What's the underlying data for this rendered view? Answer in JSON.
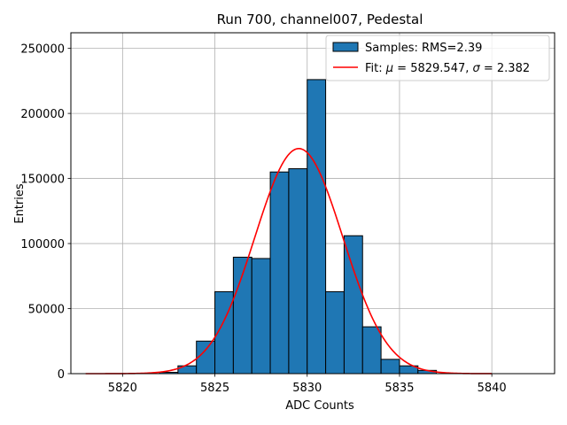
{
  "chart_data": {
    "type": "bar",
    "title": "Run 700, channel007, Pedestal",
    "xlabel": "ADC Counts",
    "ylabel": "Entries",
    "xlim": [
      5817.2,
      5843.4
    ],
    "ylim": [
      0,
      262000
    ],
    "xticks": [
      5820,
      5825,
      5830,
      5835,
      5840
    ],
    "xtick_labels": [
      "5820",
      "5825",
      "5830",
      "5835",
      "5840"
    ],
    "yticks": [
      0,
      50000,
      100000,
      150000,
      200000,
      250000
    ],
    "ytick_labels": [
      "0",
      "50000",
      "100000",
      "150000",
      "200000",
      "250000"
    ],
    "grid": true,
    "legend_position": "top-right",
    "histogram": {
      "name": "Samples: RMS=2.39",
      "color": "#1f77b4",
      "edge_color": "#000000",
      "bin_width": 1.0,
      "bin_lefts": [
        5822,
        5823,
        5824,
        5825,
        5826,
        5827,
        5828,
        5829,
        5830,
        5831,
        5832,
        5833,
        5834,
        5835,
        5836
      ],
      "values": [
        1000,
        6000,
        25000,
        63000,
        89500,
        88500,
        155000,
        157500,
        226000,
        63000,
        106000,
        36000,
        11000,
        6000,
        2500
      ]
    },
    "fit": {
      "name": "Fit: μ = 5829.547, σ = 2.382",
      "label_prefix": "Fit: ",
      "label_mu_symbol": "μ",
      "label_mu_value": " = 5829.547, ",
      "label_sigma_symbol": "σ",
      "label_sigma_value": " = 2.382",
      "color": "#ff0000",
      "mu": 5829.547,
      "sigma": 2.382,
      "amplitude": 173000,
      "x_range": [
        5818,
        5840
      ]
    }
  }
}
